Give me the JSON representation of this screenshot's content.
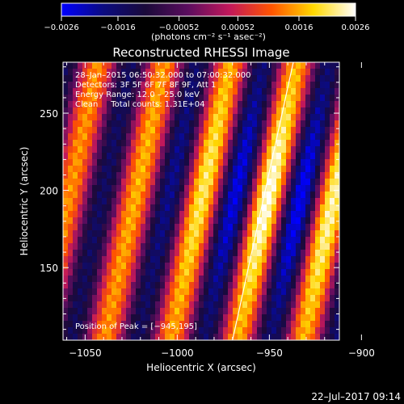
{
  "chart_data": {
    "type": "heatmap",
    "title": "Reconstructed RHESSI Image",
    "xlabel": "Heliocentric X (arcsec)",
    "ylabel": "Heliocentric Y (arcsec)",
    "xlim": [
      -1062,
      -912
    ],
    "ylim": [
      103,
      283
    ],
    "x_ticks": [
      -1050,
      -1000,
      -950,
      -900
    ],
    "x_tick_labels": [
      "−1050",
      "−1000",
      "−950",
      "−900"
    ],
    "y_ticks": [
      150,
      200,
      250
    ],
    "y_tick_labels": [
      "150",
      "200",
      "250"
    ],
    "colorbar": {
      "range": [
        -0.0026,
        0.0026
      ],
      "ticks": [
        -0.0026,
        -0.0016,
        -0.00052,
        0.00052,
        0.0016,
        0.0026
      ],
      "tick_labels": [
        "−0.0026",
        "−0.0016",
        "−0.00052",
        "0.00052",
        "0.0016",
        "0.0026"
      ],
      "unit_label": "(photons cm⁻² s⁻¹ asec⁻²)",
      "colormap": [
        "#0000ff",
        "#0b0b80",
        "#1a0a3a",
        "#5a0d5e",
        "#c2185b",
        "#ff5400",
        "#ffd800",
        "#ffffff"
      ]
    },
    "annotations": [
      "28–Jan–2015 06:50:32.000 to 07:00:32.000",
      "Detectors: 3F 5F 6F 7F 8F 9F, Att 1",
      "Energy Range: 12.0 – 25.0 keV",
      "Clean     Total counts: 1.31E+04"
    ],
    "peak_label": "Position of Peak = [−945,195]",
    "peak": {
      "x": -945,
      "y": 195
    },
    "limb_line": [
      [
        -970,
        103
      ],
      [
        -937,
        283
      ]
    ],
    "stripe_centers_at_y200": [
      -1022,
      -989,
      -953,
      -914,
      -1060
    ],
    "stripe_tilt_arcsec_per_arcsec": 0.18,
    "stripe_period_arcsec": 36,
    "grid": false,
    "legend": "none"
  },
  "footer": {
    "datetime": "22–Jul–2017 09:14"
  }
}
